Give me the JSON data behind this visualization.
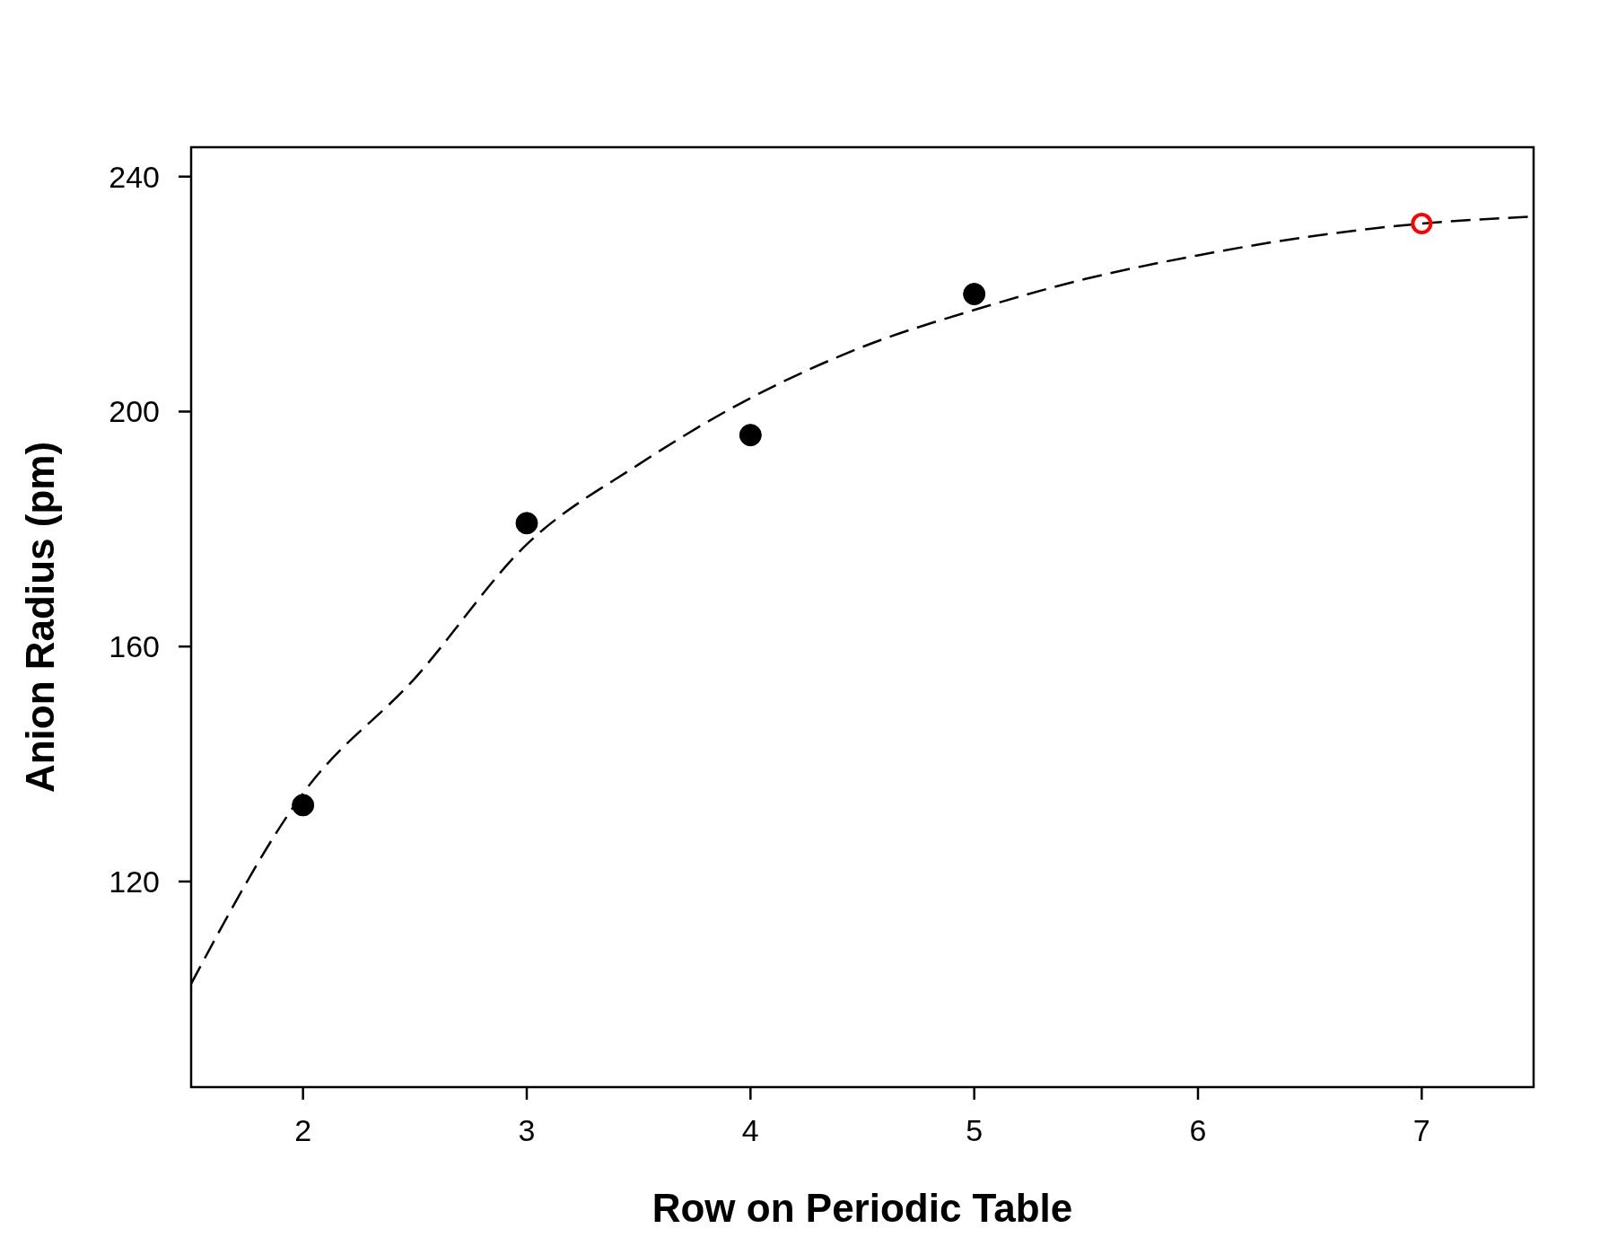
{
  "chart_data": {
    "type": "scatter",
    "xlabel": "Row on Periodic Table",
    "ylabel": "Anion Radius (pm)",
    "xlim": [
      1.5,
      7.5
    ],
    "xticks": [
      2,
      3,
      4,
      5,
      6,
      7
    ],
    "ylim": [
      85,
      245
    ],
    "yticks": [
      120,
      160,
      200,
      240
    ],
    "grid": false,
    "series": [
      {
        "type": "line",
        "color": "#000000",
        "line_style": "dashed",
        "marker": "none",
        "x": [
          1.5,
          2,
          2.5,
          3,
          3.5,
          4,
          4.5,
          5,
          5.5,
          6,
          6.5,
          7,
          7.5
        ],
        "values": [
          102.6,
          135,
          154.6,
          177.4,
          191,
          202.3,
          211,
          217.3,
          222.6,
          226.6,
          229.8,
          232,
          233.2
        ]
      },
      {
        "color": "#000000",
        "marker": "circle",
        "x": [
          2,
          3,
          4,
          5
        ],
        "values": [
          133,
          181,
          196,
          220
        ]
      },
      {
        "color": "#ff0000",
        "marker": "circle",
        "x": [
          7
        ],
        "values": [
          232
        ]
      }
    ]
  }
}
